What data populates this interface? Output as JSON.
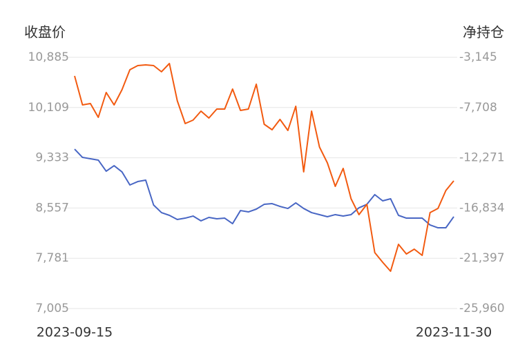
{
  "chart_data": {
    "type": "line",
    "ylabel": "收盘价",
    "y2label": "净持仓",
    "categories": [
      "2023-09-15",
      null,
      null,
      null,
      null,
      null,
      null,
      null,
      null,
      null,
      null,
      null,
      null,
      null,
      null,
      null,
      null,
      null,
      null,
      null,
      null,
      null,
      null,
      null,
      null,
      null,
      null,
      null,
      null,
      null,
      null,
      null,
      null,
      null,
      null,
      null,
      null,
      null,
      null,
      null,
      null,
      null,
      null,
      null,
      null,
      null,
      null,
      null,
      "2023-11-30"
    ],
    "series": [
      {
        "color": "#4866c4",
        "axis": "y",
        "values": [
          9467,
          9339,
          9318,
          9297,
          9126,
          9211,
          9115,
          8913,
          8966,
          8988,
          8604,
          8486,
          8444,
          8380,
          8401,
          8433,
          8359,
          8412,
          8391,
          8401,
          8316,
          8518,
          8497,
          8540,
          8614,
          8625,
          8582,
          8550,
          8636,
          8550,
          8486,
          8455,
          8423,
          8455,
          8433,
          8455,
          8561,
          8614,
          8764,
          8668,
          8700,
          8444,
          8401,
          8401,
          8401,
          8295,
          8252,
          8252,
          8423
        ]
      },
      {
        "color": "#f25a10",
        "axis": "y2",
        "values": [
          -4837,
          -7470,
          -7345,
          -8598,
          -6342,
          -7470,
          -6091,
          -4273,
          -3897,
          -3834,
          -3897,
          -4461,
          -3709,
          -7094,
          -9162,
          -8849,
          -8034,
          -8661,
          -7846,
          -7846,
          -6028,
          -7971,
          -7846,
          -5590,
          -9225,
          -9726,
          -8786,
          -9789,
          -7595,
          -13550,
          -8034,
          -11293,
          -12735,
          -14866,
          -13236,
          -15994,
          -17436,
          -16496,
          -20883,
          -21761,
          -22576,
          -20131,
          -21009,
          -20570,
          -21134,
          -17248,
          -16872,
          -15242,
          -14365
        ]
      }
    ],
    "ylim": [
      7005,
      10885
    ],
    "yticks": [
      {
        "value": 7005,
        "label": "7,005"
      },
      {
        "value": 7781,
        "label": "7,781"
      },
      {
        "value": 8557,
        "label": "8,557"
      },
      {
        "value": 9333,
        "label": "9,333"
      },
      {
        "value": 10109,
        "label": "10,109"
      },
      {
        "value": 10885,
        "label": "10,885"
      }
    ],
    "y2lim": [
      -25960,
      -3145
    ],
    "y2ticks": [
      {
        "value": -25960,
        "label": "-25,960"
      },
      {
        "value": -21397,
        "label": "-21,397"
      },
      {
        "value": -16834,
        "label": "-16,834"
      },
      {
        "value": -12271,
        "label": "-12,271"
      },
      {
        "value": -7708,
        "label": "-7,708"
      },
      {
        "value": -3145,
        "label": "-3,145"
      }
    ],
    "grid": true
  }
}
